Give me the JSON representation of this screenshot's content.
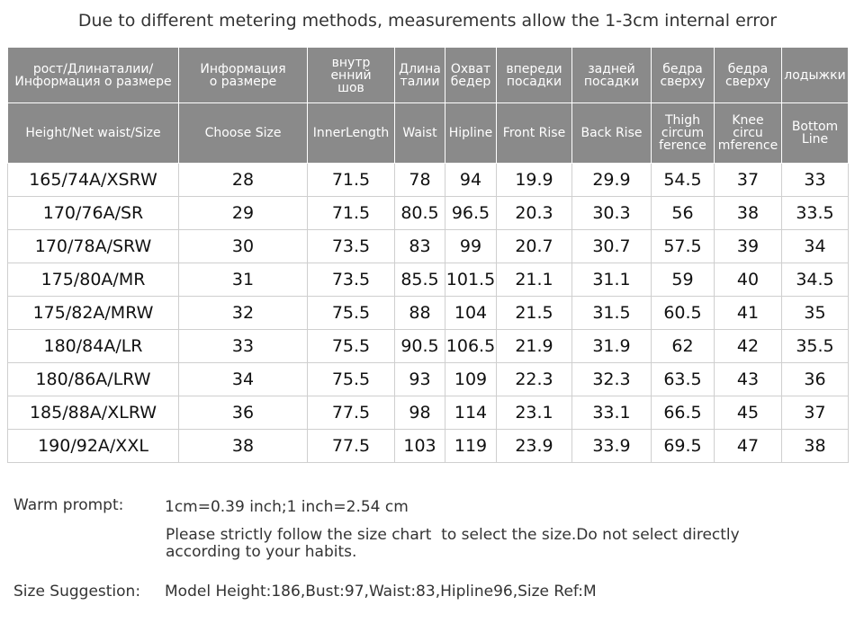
{
  "header": {
    "title": "Due to different metering methods, measurements allow the 1-3cm internal error"
  },
  "table": {
    "header_rows": [
      [
        [
          "рост/Длинаталии/",
          "Информация о размере"
        ],
        [
          "Информация",
          "о размере"
        ],
        [
          "внутр",
          "енний",
          "шов"
        ],
        [
          "Длина",
          "талии"
        ],
        [
          "Охват",
          "бедер"
        ],
        [
          "впереди",
          "посадки"
        ],
        [
          "задней",
          "посадки"
        ],
        [
          "бедра",
          "сверху"
        ],
        [
          "бедра",
          "сверху"
        ],
        [
          "лодыжки"
        ]
      ],
      [
        [
          "Height/Net waist/Size"
        ],
        [
          "Choose Size"
        ],
        [
          "InnerLength"
        ],
        [
          "Waist"
        ],
        [
          "Hipline"
        ],
        [
          "Front Rise"
        ],
        [
          "Back Rise"
        ],
        [
          "Thigh",
          "circum",
          "ference"
        ],
        [
          "Knee",
          "circu",
          "mference"
        ],
        [
          "Bottom",
          "Line"
        ]
      ]
    ],
    "rows": [
      [
        "165/74A/XSRW",
        "28",
        "71.5",
        "78",
        "94",
        "19.9",
        "29.9",
        "54.5",
        "37",
        "33"
      ],
      [
        "170/76A/SR",
        "29",
        "71.5",
        "80.5",
        "96.5",
        "20.3",
        "30.3",
        "56",
        "38",
        "33.5"
      ],
      [
        "170/78A/SRW",
        "30",
        "73.5",
        "83",
        "99",
        "20.7",
        "30.7",
        "57.5",
        "39",
        "34"
      ],
      [
        "175/80A/MR",
        "31",
        "73.5",
        "85.5",
        "101.5",
        "21.1",
        "31.1",
        "59",
        "40",
        "34.5"
      ],
      [
        "175/82A/MRW",
        "32",
        "75.5",
        "88",
        "104",
        "21.5",
        "31.5",
        "60.5",
        "41",
        "35"
      ],
      [
        "180/84A/LR",
        "33",
        "75.5",
        "90.5",
        "106.5",
        "21.9",
        "31.9",
        "62",
        "42",
        "35.5"
      ],
      [
        "180/86A/LRW",
        "34",
        "75.5",
        "93",
        "109",
        "22.3",
        "32.3",
        "63.5",
        "43",
        "36"
      ],
      [
        "185/88A/XLRW",
        "36",
        "77.5",
        "98",
        "114",
        "23.1",
        "33.1",
        "66.5",
        "45",
        "37"
      ],
      [
        "190/92A/XXL",
        "38",
        "77.5",
        "103",
        "119",
        "23.9",
        "33.9",
        "69.5",
        "47",
        "38"
      ]
    ]
  },
  "notes": {
    "warm_prompt_label": "Warm prompt:",
    "warm_prompt_text": "1cm=0.39 inch;1 inch=2.54 cm",
    "warm_prompt_detail": [
      "Please strictly follow the size chart  to select the size.Do not select directly",
      "according to your habits."
    ],
    "size_suggestion_label": "Size Suggestion:",
    "size_suggestion_text": "Model Height:186,Bust:97,Waist:83,Hipline96,Size Ref:M"
  }
}
